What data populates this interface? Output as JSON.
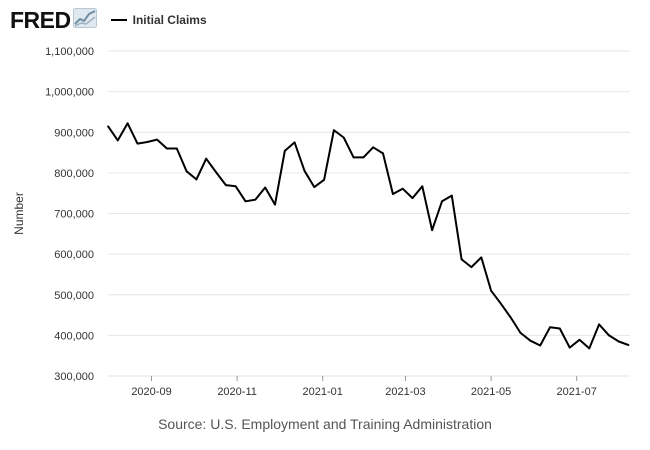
{
  "brand": {
    "logo_text": "FRED",
    "logo_icon": "chart-trend-icon"
  },
  "chart_data": {
    "type": "line",
    "title": "",
    "xlabel": "",
    "ylabel": "Number",
    "ylim": [
      300000,
      1100000
    ],
    "yticks": [
      300000,
      400000,
      500000,
      600000,
      700000,
      800000,
      900000,
      1000000,
      1100000
    ],
    "ytick_labels": [
      "300,000",
      "400,000",
      "500,000",
      "600,000",
      "700,000",
      "800,000",
      "900,000",
      "1,000,000",
      "1,100,000"
    ],
    "xlim": [
      "2020-08-01",
      "2021-08-08"
    ],
    "xticks": [
      "2020-09-01",
      "2020-11-01",
      "2021-01-01",
      "2021-03-01",
      "2021-05-01",
      "2021-07-01"
    ],
    "xtick_labels": [
      "2020-09",
      "2020-11",
      "2021-01",
      "2021-03",
      "2021-05",
      "2021-07"
    ],
    "grid": true,
    "legend": "top-left",
    "series": [
      {
        "name": "Initial Claims",
        "color": "#000000",
        "x": [
          "2020-08-01",
          "2020-08-08",
          "2020-08-15",
          "2020-08-22",
          "2020-08-29",
          "2020-09-05",
          "2020-09-12",
          "2020-09-19",
          "2020-09-26",
          "2020-10-03",
          "2020-10-10",
          "2020-10-17",
          "2020-10-24",
          "2020-10-31",
          "2020-11-07",
          "2020-11-14",
          "2020-11-21",
          "2020-11-28",
          "2020-12-05",
          "2020-12-12",
          "2020-12-19",
          "2020-12-26",
          "2021-01-02",
          "2021-01-09",
          "2021-01-16",
          "2021-01-23",
          "2021-01-30",
          "2021-02-06",
          "2021-02-13",
          "2021-02-20",
          "2021-02-27",
          "2021-03-06",
          "2021-03-13",
          "2021-03-20",
          "2021-03-27",
          "2021-04-03",
          "2021-04-10",
          "2021-04-17",
          "2021-04-24",
          "2021-05-01",
          "2021-05-08",
          "2021-05-15",
          "2021-05-22",
          "2021-05-29",
          "2021-06-05",
          "2021-06-12",
          "2021-06-19",
          "2021-06-26",
          "2021-07-03",
          "2021-07-10",
          "2021-07-17",
          "2021-07-24",
          "2021-07-31",
          "2021-08-07"
        ],
        "values": [
          915000,
          880000,
          922000,
          872000,
          876000,
          882000,
          860000,
          860000,
          804000,
          784000,
          835000,
          802000,
          770000,
          767000,
          730000,
          734000,
          764000,
          722000,
          854000,
          875000,
          805000,
          765000,
          783000,
          905000,
          887000,
          838000,
          838000,
          863000,
          848000,
          748000,
          761000,
          738000,
          767000,
          659000,
          730000,
          744000,
          587000,
          568000,
          592000,
          510000,
          478000,
          444000,
          406000,
          387000,
          375000,
          420000,
          417000,
          370000,
          389000,
          368000,
          427000,
          400000,
          385000,
          376000
        ]
      }
    ]
  },
  "source_text": "Source: U.S. Employment and Training Administration"
}
